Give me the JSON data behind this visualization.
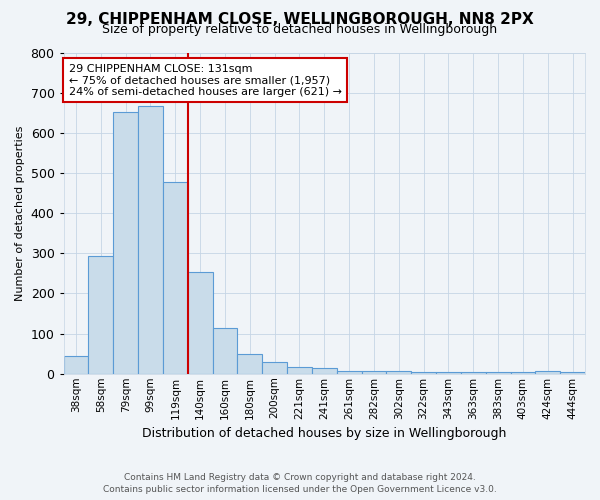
{
  "title": "29, CHIPPENHAM CLOSE, WELLINGBOROUGH, NN8 2PX",
  "subtitle": "Size of property relative to detached houses in Wellingborough",
  "xlabel": "Distribution of detached houses by size in Wellingborough",
  "ylabel": "Number of detached properties",
  "footnote1": "Contains HM Land Registry data © Crown copyright and database right 2024.",
  "footnote2": "Contains public sector information licensed under the Open Government Licence v3.0.",
  "categories": [
    "38sqm",
    "58sqm",
    "79sqm",
    "99sqm",
    "119sqm",
    "140sqm",
    "160sqm",
    "180sqm",
    "200sqm",
    "221sqm",
    "241sqm",
    "261sqm",
    "282sqm",
    "302sqm",
    "322sqm",
    "343sqm",
    "363sqm",
    "383sqm",
    "403sqm",
    "424sqm",
    "444sqm"
  ],
  "values": [
    45,
    293,
    651,
    668,
    478,
    253,
    115,
    49,
    29,
    17,
    15,
    8,
    7,
    6,
    5,
    5,
    5,
    5,
    5,
    8,
    5
  ],
  "bar_color": "#c9dcea",
  "bar_edge_color": "#5b9bd5",
  "ylim": [
    0,
    800
  ],
  "yticks": [
    0,
    100,
    200,
    300,
    400,
    500,
    600,
    700,
    800
  ],
  "red_line_x": 4.5,
  "red_line_color": "#cc0000",
  "annotation_text_line1": "29 CHIPPENHAM CLOSE: 131sqm",
  "annotation_text_line2": "← 75% of detached houses are smaller (1,957)",
  "annotation_text_line3": "24% of semi-detached houses are larger (621) →",
  "annotation_box_color": "#cc0000",
  "background_color": "#f0f4f8",
  "plot_bg_color": "#f0f4f8",
  "grid_color": "#c5d5e5",
  "title_fontsize": 11,
  "subtitle_fontsize": 9,
  "xlabel_fontsize": 9,
  "ylabel_fontsize": 8,
  "footnote_fontsize": 6.5
}
